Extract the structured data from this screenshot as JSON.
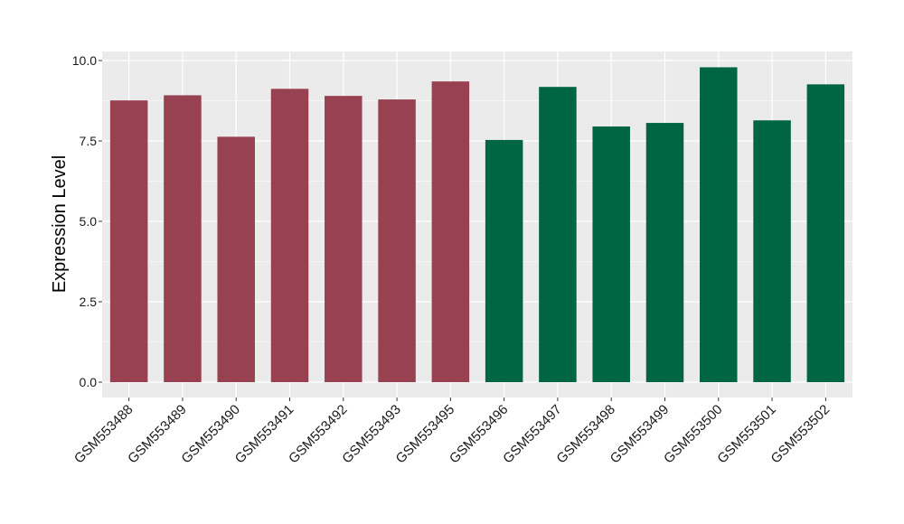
{
  "chart_data": {
    "type": "bar",
    "title": "",
    "xlabel": "",
    "ylabel": "Expression Level",
    "ylim": [
      0,
      10
    ],
    "yticks": [
      "0.0",
      "2.5",
      "5.0",
      "7.5",
      "10.0"
    ],
    "ytick_values": [
      0,
      2.5,
      5,
      7.5,
      10
    ],
    "grid": true,
    "legend": "none",
    "categories": [
      "GSM553488",
      "GSM553489",
      "GSM553490",
      "GSM553491",
      "GSM553492",
      "GSM553493",
      "GSM553495",
      "GSM553496",
      "GSM553497",
      "GSM553498",
      "GSM553499",
      "GSM553500",
      "GSM553501",
      "GSM553502"
    ],
    "values": [
      8.76,
      8.92,
      7.63,
      9.12,
      8.9,
      8.79,
      9.35,
      7.53,
      9.18,
      7.95,
      8.06,
      9.79,
      8.14,
      9.26
    ],
    "groups": [
      "group1",
      "group1",
      "group1",
      "group1",
      "group1",
      "group1",
      "group1",
      "group2",
      "group2",
      "group2",
      "group2",
      "group2",
      "group2",
      "group2"
    ],
    "group_colors": {
      "group1": "#984150",
      "group2": "#006543"
    },
    "panel_background": "#ebebeb",
    "grid_color": "#ffffff"
  }
}
